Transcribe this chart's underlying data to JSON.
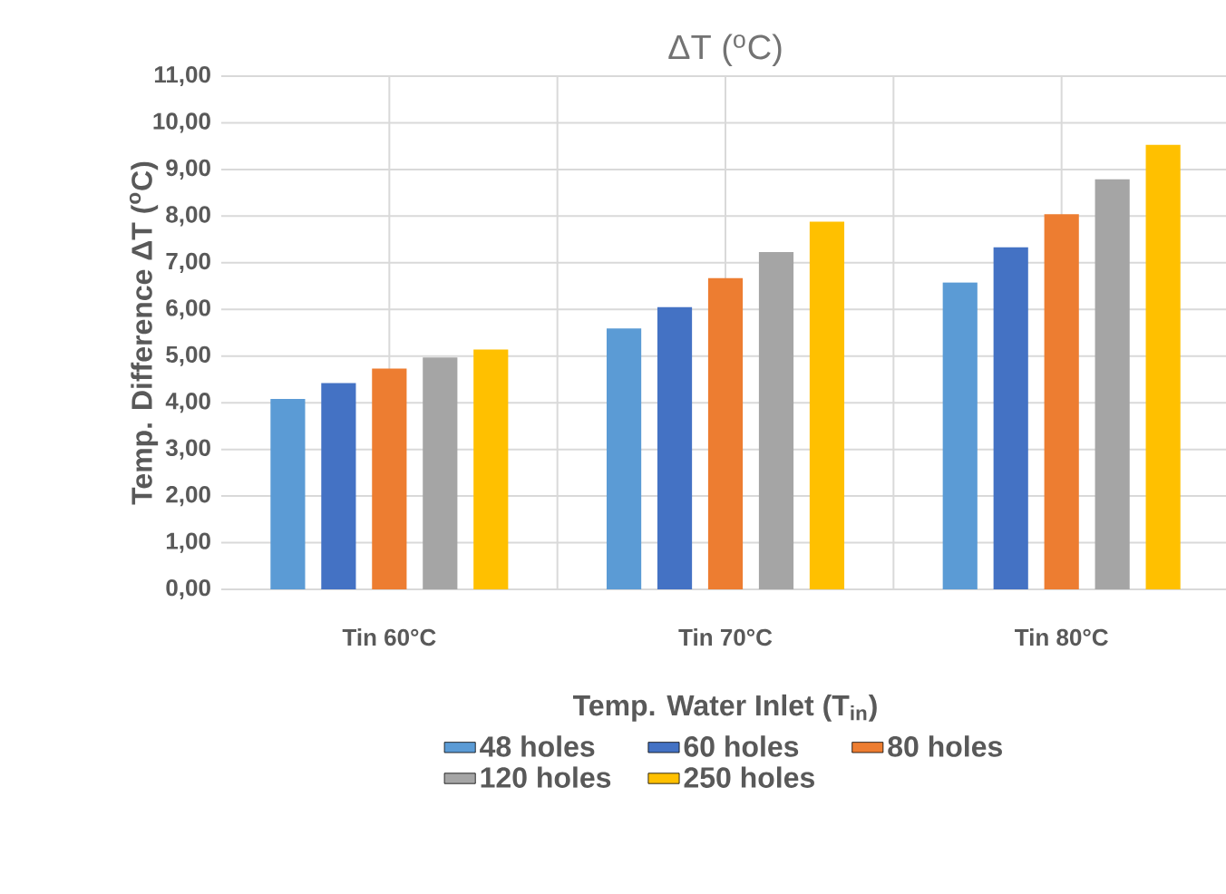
{
  "chart_data": {
    "type": "bar",
    "title": "ΔT ($^{o}$C)",
    "ylabel": "Temp. Difference ΔT ($^{o}$C)",
    "xlabel": "Temp. Water Inlet (T$_{in}$)",
    "categories": [
      "Tin 60°C",
      "Tin 70°C",
      "Tin 80°C"
    ],
    "series": [
      {
        "name": "48 holes",
        "color": "#5b9bd5",
        "values": [
          4.08,
          5.59,
          6.58
        ]
      },
      {
        "name": "60 holes",
        "color": "#4472c4",
        "values": [
          4.42,
          6.05,
          7.33
        ]
      },
      {
        "name": "80 holes",
        "color": "#ed7d31",
        "values": [
          4.73,
          6.67,
          8.04
        ]
      },
      {
        "name": "120 holes",
        "color": "#a5a5a5",
        "values": [
          4.97,
          7.23,
          8.79
        ]
      },
      {
        "name": "250 holes",
        "color": "#ffc000",
        "values": [
          5.14,
          7.88,
          9.53
        ]
      }
    ],
    "ylim": [
      0,
      11
    ],
    "yticks": [
      {
        "value": 0,
        "label": "0,00"
      },
      {
        "value": 1,
        "label": "1,00"
      },
      {
        "value": 2,
        "label": "2,00"
      },
      {
        "value": 3,
        "label": "3,00"
      },
      {
        "value": 4,
        "label": "4,00"
      },
      {
        "value": 5,
        "label": "5,00"
      },
      {
        "value": 6,
        "label": "6,00"
      },
      {
        "value": 7,
        "label": "7,00"
      },
      {
        "value": 8,
        "label": "8,00"
      },
      {
        "value": 9,
        "label": "9,00"
      },
      {
        "value": 10,
        "label": "10,00"
      },
      {
        "value": 11,
        "label": "11,00"
      }
    ],
    "grid": true,
    "legend": "bottom"
  }
}
